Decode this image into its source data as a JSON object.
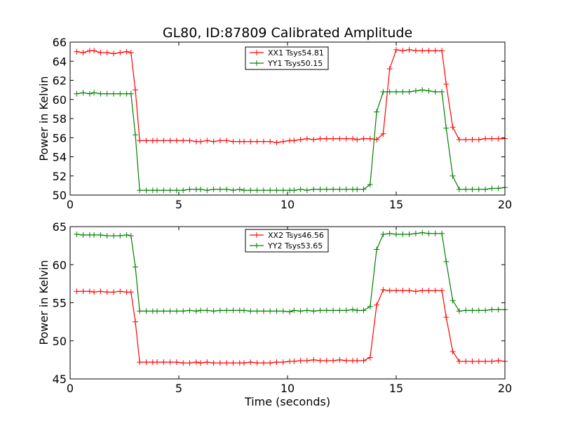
{
  "chart_data": [
    {
      "type": "line",
      "title": "GL80, ID:87809 Calibrated Amplitude",
      "xlabel": "",
      "ylabel": "Power in Kelvin",
      "xlim": [
        0,
        20
      ],
      "ylim": [
        50,
        66
      ],
      "xticks": [
        0,
        5,
        10,
        15,
        20
      ],
      "yticks": [
        50,
        52,
        54,
        56,
        58,
        60,
        62,
        64,
        66
      ],
      "legend_position": "top-center",
      "grid": false,
      "x": [
        0.3,
        0.6,
        0.9,
        1.1,
        1.4,
        1.7,
        2.0,
        2.3,
        2.6,
        2.8,
        3.0,
        3.2,
        3.5,
        3.8,
        4.0,
        4.3,
        4.6,
        4.9,
        5.2,
        5.5,
        5.8,
        6.0,
        6.3,
        6.6,
        6.9,
        7.2,
        7.5,
        7.8,
        8.0,
        8.3,
        8.6,
        8.9,
        9.2,
        9.5,
        9.8,
        10.1,
        10.3,
        10.6,
        10.9,
        11.2,
        11.5,
        11.8,
        12.1,
        12.4,
        12.7,
        13.0,
        13.2,
        13.5,
        13.8,
        14.1,
        14.4,
        14.7,
        15.0,
        15.3,
        15.6,
        15.9,
        16.2,
        16.5,
        16.8,
        17.1,
        17.3,
        17.6,
        17.9,
        18.2,
        18.5,
        18.8,
        19.1,
        19.4,
        19.7,
        20.0
      ],
      "series": [
        {
          "name": "XX1 Tsys54.81",
          "color": "#ff0000",
          "values": [
            65.0,
            64.9,
            65.1,
            65.1,
            64.9,
            64.9,
            64.8,
            64.9,
            65.0,
            64.9,
            61.0,
            55.7,
            55.7,
            55.7,
            55.7,
            55.7,
            55.7,
            55.7,
            55.7,
            55.7,
            55.6,
            55.6,
            55.7,
            55.6,
            55.7,
            55.7,
            55.6,
            55.6,
            55.6,
            55.6,
            55.6,
            55.6,
            55.6,
            55.5,
            55.6,
            55.7,
            55.7,
            55.8,
            55.9,
            55.8,
            55.9,
            55.9,
            55.9,
            55.9,
            55.9,
            55.9,
            55.8,
            55.9,
            55.9,
            55.8,
            56.4,
            63.2,
            65.2,
            65.1,
            65.2,
            65.1,
            65.1,
            65.1,
            65.1,
            65.1,
            61.6,
            57.1,
            55.8,
            55.8,
            55.8,
            55.8,
            55.9,
            55.9,
            55.9,
            55.9
          ]
        },
        {
          "name": "YY1 Tsys50.15",
          "color": "#008000",
          "values": [
            60.6,
            60.7,
            60.6,
            60.7,
            60.6,
            60.6,
            60.6,
            60.6,
            60.6,
            60.6,
            56.3,
            50.5,
            50.5,
            50.5,
            50.5,
            50.5,
            50.5,
            50.5,
            50.5,
            50.6,
            50.6,
            50.6,
            50.5,
            50.6,
            50.6,
            50.6,
            50.5,
            50.6,
            50.5,
            50.5,
            50.5,
            50.5,
            50.5,
            50.5,
            50.5,
            50.5,
            50.5,
            50.6,
            50.5,
            50.6,
            50.6,
            50.6,
            50.6,
            50.6,
            50.6,
            50.6,
            50.6,
            50.6,
            51.1,
            58.7,
            60.8,
            60.8,
            60.8,
            60.8,
            60.8,
            60.9,
            61.0,
            60.9,
            60.8,
            60.8,
            57.0,
            52.0,
            50.6,
            50.6,
            50.6,
            50.6,
            50.6,
            50.7,
            50.7,
            50.8
          ]
        }
      ]
    },
    {
      "type": "line",
      "title": "",
      "xlabel": "Time (seconds)",
      "ylabel": "Power in Kelvin",
      "xlim": [
        0,
        20
      ],
      "ylim": [
        45,
        65
      ],
      "xticks": [
        0,
        5,
        10,
        15,
        20
      ],
      "yticks": [
        45,
        50,
        55,
        60,
        65
      ],
      "legend_position": "top-center",
      "grid": false,
      "x": [
        0.3,
        0.6,
        0.9,
        1.1,
        1.4,
        1.7,
        2.0,
        2.3,
        2.6,
        2.8,
        3.0,
        3.2,
        3.5,
        3.8,
        4.0,
        4.3,
        4.6,
        4.9,
        5.2,
        5.5,
        5.8,
        6.0,
        6.3,
        6.6,
        6.9,
        7.2,
        7.5,
        7.8,
        8.0,
        8.3,
        8.6,
        8.9,
        9.2,
        9.5,
        9.8,
        10.1,
        10.3,
        10.6,
        10.9,
        11.2,
        11.5,
        11.8,
        12.1,
        12.4,
        12.7,
        13.0,
        13.2,
        13.5,
        13.8,
        14.1,
        14.4,
        14.7,
        15.0,
        15.3,
        15.6,
        15.9,
        16.2,
        16.5,
        16.8,
        17.1,
        17.3,
        17.6,
        17.9,
        18.2,
        18.5,
        18.8,
        19.1,
        19.4,
        19.7,
        20.0
      ],
      "series": [
        {
          "name": "XX2 Tsys46.56",
          "color": "#ff0000",
          "values": [
            56.5,
            56.5,
            56.5,
            56.4,
            56.5,
            56.4,
            56.4,
            56.5,
            56.4,
            56.4,
            52.5,
            47.2,
            47.2,
            47.2,
            47.2,
            47.2,
            47.2,
            47.2,
            47.1,
            47.1,
            47.2,
            47.1,
            47.2,
            47.1,
            47.1,
            47.1,
            47.1,
            47.1,
            47.1,
            47.2,
            47.1,
            47.1,
            47.1,
            47.2,
            47.2,
            47.3,
            47.3,
            47.4,
            47.4,
            47.5,
            47.4,
            47.4,
            47.4,
            47.5,
            47.4,
            47.4,
            47.4,
            47.4,
            47.8,
            54.7,
            56.7,
            56.6,
            56.6,
            56.6,
            56.6,
            56.5,
            56.6,
            56.6,
            56.6,
            56.6,
            53.1,
            48.6,
            47.3,
            47.3,
            47.3,
            47.3,
            47.3,
            47.3,
            47.4,
            47.3
          ]
        },
        {
          "name": "YY2 Tsys53.65",
          "color": "#008000",
          "values": [
            64.0,
            63.9,
            63.9,
            63.9,
            63.9,
            63.8,
            63.8,
            63.8,
            63.9,
            63.8,
            59.7,
            53.9,
            53.9,
            53.9,
            53.9,
            53.9,
            53.9,
            53.9,
            53.9,
            54.0,
            53.9,
            54.0,
            54.0,
            53.9,
            54.0,
            54.0,
            54.0,
            54.0,
            54.0,
            53.9,
            53.9,
            53.9,
            53.9,
            53.9,
            53.9,
            53.8,
            54.0,
            53.9,
            54.0,
            53.9,
            54.0,
            54.0,
            54.0,
            54.0,
            54.0,
            54.1,
            54.0,
            54.0,
            54.5,
            62.0,
            64.0,
            64.1,
            64.0,
            64.0,
            64.0,
            64.1,
            64.2,
            64.1,
            64.1,
            64.1,
            60.4,
            55.3,
            53.9,
            54.0,
            54.0,
            54.0,
            54.0,
            54.1,
            54.1,
            54.1
          ]
        }
      ]
    }
  ]
}
